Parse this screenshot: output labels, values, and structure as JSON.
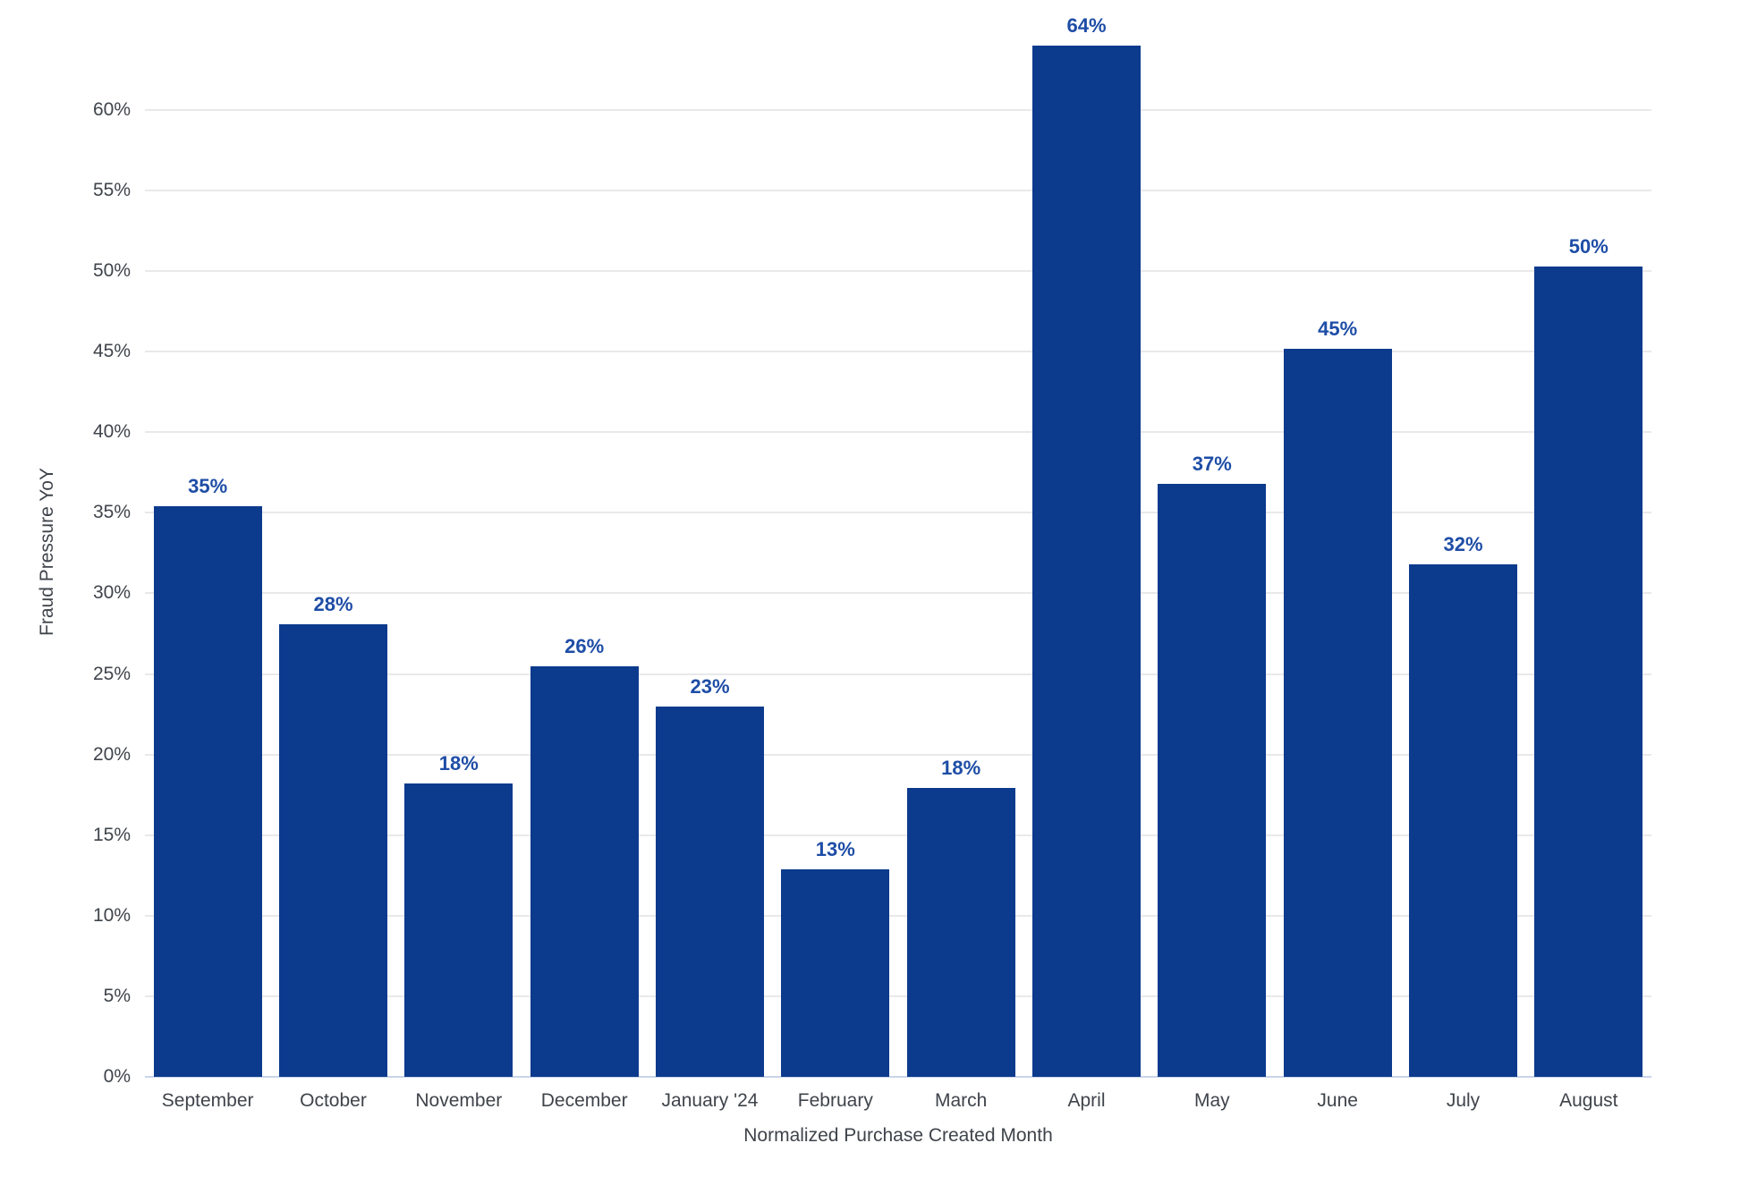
{
  "chart_data": {
    "type": "bar",
    "title": "",
    "xlabel": "Normalized Purchase Created Month",
    "ylabel": "Fraud Pressure YoY",
    "categories": [
      "September",
      "October",
      "November",
      "December",
      "January '24",
      "February",
      "March",
      "April",
      "May",
      "June",
      "July",
      "August"
    ],
    "values": [
      35.4,
      28.1,
      18.2,
      25.5,
      23.0,
      12.9,
      17.9,
      64.0,
      36.8,
      45.2,
      31.8,
      50.3
    ],
    "bar_labels": [
      "35%",
      "28%",
      "18%",
      "26%",
      "23%",
      "13%",
      "18%",
      "64%",
      "37%",
      "45%",
      "32%",
      "50%"
    ],
    "y_ticks": [
      0,
      5,
      10,
      15,
      20,
      25,
      30,
      35,
      40,
      45,
      50,
      55,
      60
    ],
    "y_tick_suffix": "%",
    "ylim": [
      0,
      64.6
    ],
    "grid": true,
    "legend": "none",
    "colors": {
      "bar": "#0c3a8d",
      "bar_label": "#1e4da6",
      "axis_text": "#3f444b",
      "gridline": "#e9e9e9",
      "baseline": "#c9d4ea",
      "background": "#ffffff"
    }
  }
}
